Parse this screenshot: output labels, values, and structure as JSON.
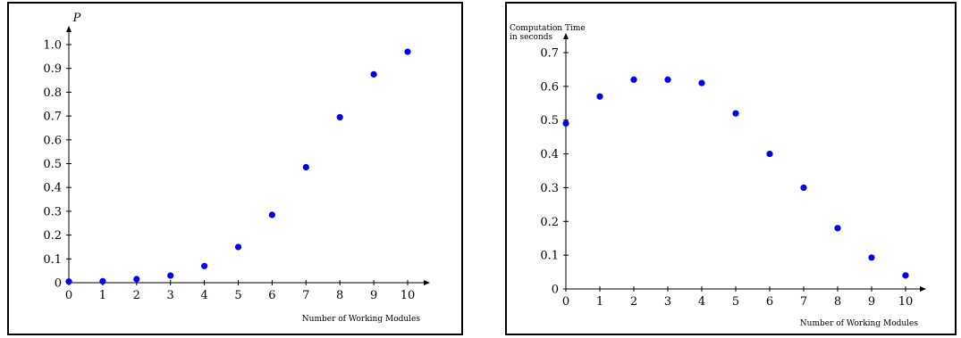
{
  "chart_data": [
    {
      "type": "scatter",
      "title": "",
      "xlabel": "Number of Working Modules",
      "ylabel": "P",
      "xlim": [
        0,
        10
      ],
      "ylim": [
        0,
        1.0
      ],
      "xticks": [
        "0",
        "1",
        "2",
        "3",
        "4",
        "5",
        "6",
        "7",
        "8",
        "9",
        "10"
      ],
      "yticks": [
        "0",
        "0.1",
        "0.2",
        "0.3",
        "0.4",
        "0.5",
        "0.6",
        "0.7",
        "0.8",
        "0.9",
        "1.0"
      ],
      "point_color": "#0000ee",
      "x": [
        0,
        1,
        2,
        3,
        4,
        5,
        6,
        7,
        8,
        9,
        10
      ],
      "y": [
        0.005,
        0.006,
        0.015,
        0.03,
        0.07,
        0.15,
        0.285,
        0.485,
        0.695,
        0.875,
        0.97
      ]
    },
    {
      "type": "scatter",
      "title": "",
      "xlabel": "Number of Working Modules",
      "ylabel_lines": [
        "Computation Time",
        "in seconds"
      ],
      "xlim": [
        0,
        10
      ],
      "ylim": [
        0,
        0.7
      ],
      "xticks": [
        "0",
        "1",
        "2",
        "3",
        "4",
        "5",
        "6",
        "7",
        "8",
        "9",
        "10"
      ],
      "yticks": [
        "0",
        "0.1",
        "0.2",
        "0.3",
        "0.4",
        "0.5",
        "0.6",
        "0.7"
      ],
      "point_color": "#0000ee",
      "x": [
        0,
        1,
        2,
        3,
        4,
        5,
        6,
        7,
        8,
        9,
        10
      ],
      "y": [
        0.49,
        0.57,
        0.62,
        0.62,
        0.61,
        0.52,
        0.4,
        0.3,
        0.18,
        0.093,
        0.04
      ]
    }
  ]
}
